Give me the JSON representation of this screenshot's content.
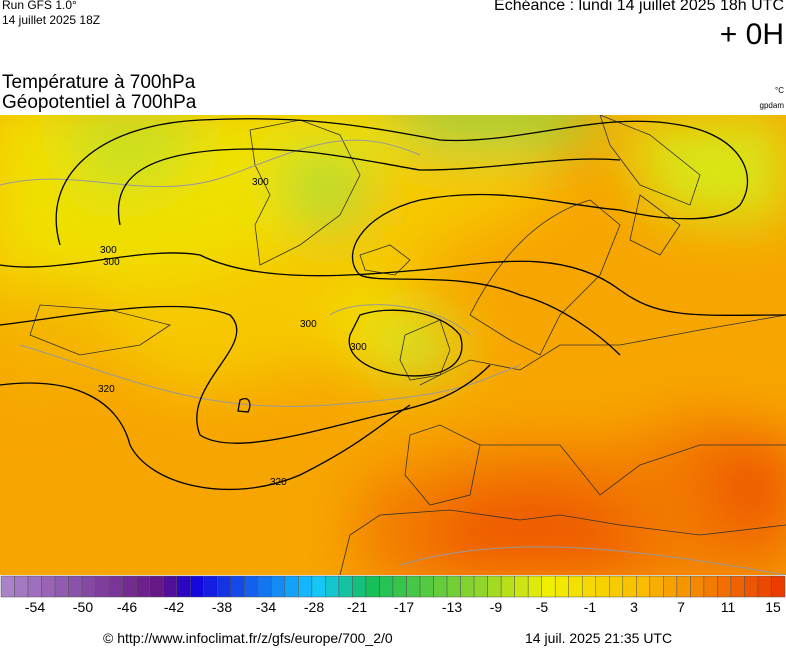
{
  "header": {
    "run": "Run GFS 1.0°",
    "run_date": "14 juillet 2025 18Z",
    "valid": "Echéance : lundi 14 juillet 2025 18h UTC",
    "lead": "+ 0H",
    "title1": "Température à 700hPa",
    "title2": "Géopotentiel à 700hPa",
    "unit_temp": "°C",
    "unit_geo": "gpdam"
  },
  "contour_labels": [
    "300",
    "300",
    "300",
    "300",
    "300",
    "320",
    "320"
  ],
  "colorbar": {
    "labels": [
      "-54",
      "-50",
      "-46",
      "-42",
      "-38",
      "-34",
      "-28",
      "-21",
      "-17",
      "-13",
      "-9",
      "-5",
      "-1",
      "3",
      "7",
      "11",
      "15"
    ]
  },
  "footer": {
    "source": "© http://www.infoclimat.fr/z/gfs/europe/700_2/0",
    "generated": "14 juil. 2025 21:35 UTC"
  }
}
